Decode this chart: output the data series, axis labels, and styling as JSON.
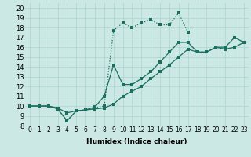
{
  "xlabel": "Humidex (Indice chaleur)",
  "bg_color": "#cce8e4",
  "grid_color": "#aad4d0",
  "line_color": "#1a7060",
  "xlim": [
    -0.5,
    23.5
  ],
  "ylim": [
    8,
    20.5
  ],
  "xticks": [
    0,
    1,
    2,
    3,
    4,
    5,
    6,
    7,
    8,
    9,
    10,
    11,
    12,
    13,
    14,
    15,
    16,
    17,
    18,
    19,
    20,
    21,
    22,
    23
  ],
  "yticks": [
    8,
    9,
    10,
    11,
    12,
    13,
    14,
    15,
    16,
    17,
    18,
    19,
    20
  ],
  "series": [
    {
      "x": [
        0,
        1,
        2,
        3,
        4,
        5,
        6,
        7,
        8,
        9,
        10,
        11,
        12,
        13,
        14,
        15,
        16,
        17
      ],
      "y": [
        10,
        10,
        10,
        9.7,
        8.5,
        9.5,
        9.6,
        9.8,
        10.0,
        17.7,
        18.5,
        18.0,
        18.5,
        18.8,
        18.3,
        18.3,
        19.5,
        17.5
      ],
      "style": "dotted"
    },
    {
      "x": [
        0,
        1,
        2,
        3,
        4,
        5,
        6,
        7,
        8,
        9,
        10,
        11,
        12,
        13,
        14,
        15,
        16,
        17
      ],
      "y": [
        10,
        10,
        10,
        9.7,
        8.5,
        9.5,
        9.6,
        9.9,
        11.0,
        14.2,
        12.2,
        12.2,
        12.8,
        13.5,
        14.5,
        15.5,
        16.5,
        16.5
      ],
      "style": "solid"
    },
    {
      "x": [
        0,
        1,
        2,
        3,
        4,
        5,
        6,
        7,
        8,
        9,
        10,
        11,
        12,
        13,
        14,
        15,
        16,
        17,
        18,
        19,
        20,
        21,
        22,
        23
      ],
      "y": [
        10,
        10,
        10,
        9.8,
        9.3,
        9.5,
        9.6,
        9.7,
        9.8,
        10.2,
        11.0,
        11.5,
        12.0,
        12.8,
        13.5,
        14.2,
        15.0,
        15.8,
        15.5,
        15.5,
        16.0,
        16.0,
        17.0,
        16.5
      ],
      "style": "solid"
    },
    {
      "x": [
        17,
        18,
        19,
        20,
        21,
        22,
        23
      ],
      "y": [
        16.5,
        15.5,
        15.5,
        16.0,
        15.8,
        16.0,
        16.5
      ],
      "style": "solid"
    }
  ]
}
